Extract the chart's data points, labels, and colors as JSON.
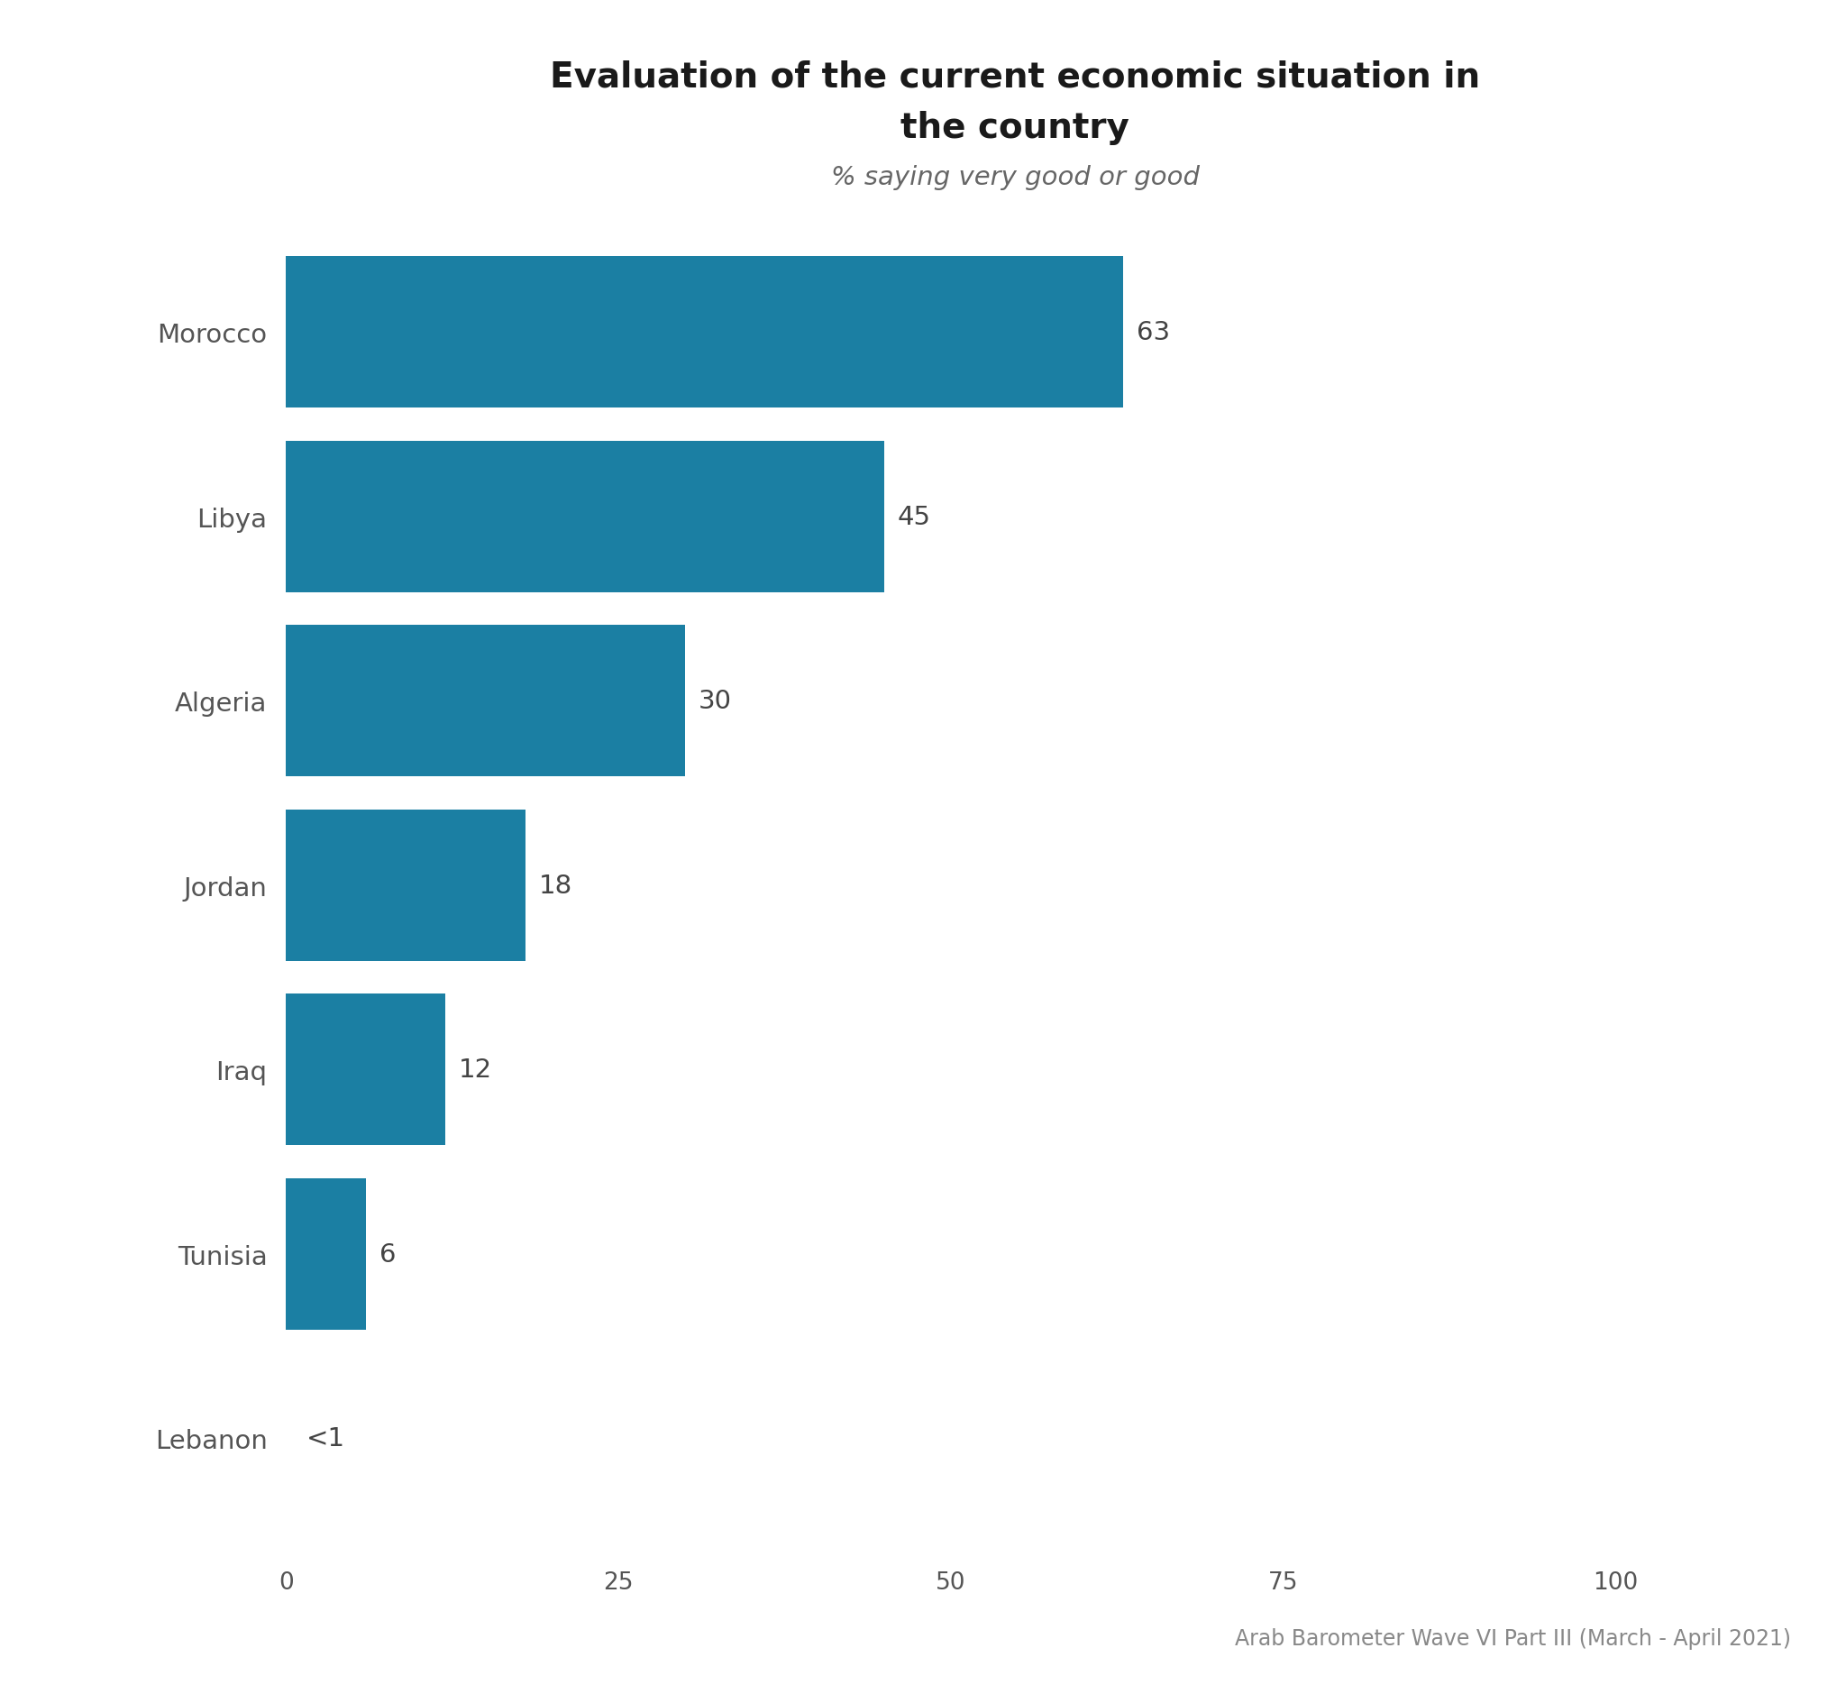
{
  "title_line1": "Evaluation of the current economic situation in",
  "title_line2": "the country",
  "subtitle": "% saying very good or good",
  "categories": [
    "Morocco",
    "Libya",
    "Algeria",
    "Jordan",
    "Iraq",
    "Tunisia",
    "Lebanon"
  ],
  "values": [
    63,
    45,
    30,
    18,
    12,
    6,
    0
  ],
  "labels": [
    "63",
    "45",
    "30",
    "18",
    "12",
    "6",
    "<1"
  ],
  "bar_color": "#1b7fa3",
  "label_color": "#444444",
  "axis_label_color": "#555555",
  "title_color": "#1a1a1a",
  "subtitle_color": "#666666",
  "source_text": "Arab Barometer Wave VI Part III (March - April 2021)",
  "source_color": "#888888",
  "background_color": "#ffffff",
  "xlim": [
    0,
    100
  ],
  "xticks": [
    0,
    25,
    50,
    75,
    100
  ],
  "xtick_labels": [
    "0",
    "25",
    "50",
    "75",
    "100"
  ],
  "title_fontsize": 28,
  "subtitle_fontsize": 21,
  "ylabel_fontsize": 21,
  "xlabel_fontsize": 19,
  "value_label_fontsize": 21,
  "source_fontsize": 17,
  "bar_height": 0.82
}
